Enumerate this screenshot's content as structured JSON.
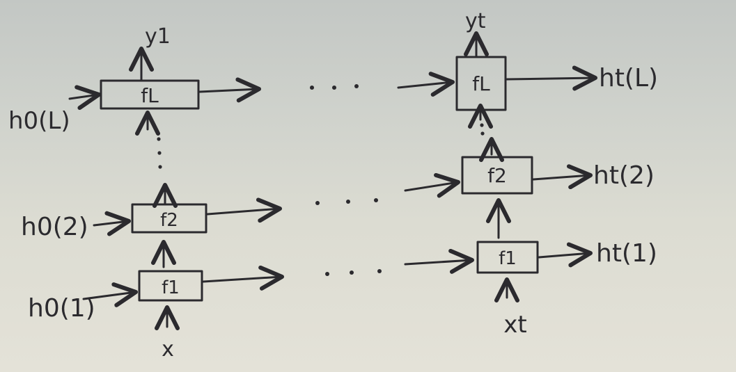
{
  "diagram": {
    "left_column": {
      "output": "y1",
      "top_input": "h0(L)",
      "mid_input": "h0(2)",
      "bottom_input": "h0(1)",
      "input": "x",
      "cells": [
        "fL",
        "f2",
        "f1"
      ]
    },
    "right_column": {
      "output": "yt",
      "cells": [
        "fL",
        "f2",
        "f1"
      ],
      "outputs": [
        "ht(L)",
        "ht(2)",
        "ht(1)"
      ],
      "input": "xt"
    }
  }
}
